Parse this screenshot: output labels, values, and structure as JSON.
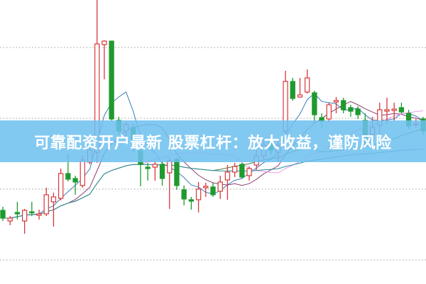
{
  "banner": {
    "text": "可靠配资开户最新 股票杠杆：放大收益，谨防风险"
  },
  "chart_data": {
    "type": "candlestick",
    "title": "",
    "xlabel": "",
    "ylabel": "",
    "ylim": [
      -0.1,
      40
    ],
    "grid": {
      "horizontal": true,
      "style": "dotted",
      "values": [
        33.3,
        23.3,
        13.3,
        3.3
      ]
    },
    "colors": {
      "up": "#d9373b",
      "down": "#1e9a2e",
      "grid": "#b0b0b0",
      "banner": "#6ec0f0"
    },
    "ma_lines": [
      {
        "period": 5,
        "color": "#3b7fb8"
      },
      {
        "period": 10,
        "color": "#8c3f72"
      },
      {
        "period": 20,
        "color": "#ec9be6"
      },
      {
        "period": 30,
        "color": "#4f7d3c"
      },
      {
        "period": 60,
        "color": "#2a8d9c"
      }
    ],
    "candles": [
      [
        10.3,
        10.8,
        8.8,
        9.2
      ],
      [
        8.8,
        9.5,
        8.2,
        9.2
      ],
      [
        10.0,
        11.5,
        9.0,
        9.8
      ],
      [
        8.8,
        10.5,
        7.0,
        10.3
      ],
      [
        10.1,
        11.5,
        9.5,
        10.0
      ],
      [
        9.6,
        10.4,
        9.0,
        9.8
      ],
      [
        9.8,
        13.5,
        9.5,
        12.5
      ],
      [
        11.5,
        12.8,
        8.0,
        12.2
      ],
      [
        12.0,
        16.2,
        11.7,
        15.5
      ],
      [
        15.5,
        18.3,
        14.4,
        14.7
      ],
      [
        14.8,
        15.2,
        12.5,
        14.3
      ],
      [
        13.8,
        18.0,
        13.5,
        17.4
      ],
      [
        17.1,
        19.5,
        16.8,
        18.8
      ],
      [
        18.5,
        40.0,
        17.0,
        33.8
      ],
      [
        33.7,
        34.3,
        28.8,
        34.2
      ],
      [
        34.2,
        34.2,
        23.0,
        23.2
      ],
      [
        23.0,
        23.5,
        21.0,
        21.5
      ],
      [
        21.5,
        22.8,
        20.5,
        22.4
      ],
      [
        22.0,
        22.5,
        18.5,
        20.0
      ],
      [
        18.7,
        19.5,
        13.7,
        16.8
      ],
      [
        16.4,
        17.0,
        14.5,
        16.2
      ],
      [
        16.4,
        17.2,
        14.5,
        16.8
      ],
      [
        16.8,
        17.2,
        13.8,
        14.8
      ],
      [
        15.6,
        17.8,
        10.5,
        17.3
      ],
      [
        17.5,
        17.8,
        13.2,
        13.8
      ],
      [
        13.2,
        13.8,
        11.0,
        11.9
      ],
      [
        11.8,
        12.2,
        10.4,
        11.6
      ],
      [
        11.8,
        14.3,
        10.0,
        13.3
      ],
      [
        13.5,
        14.2,
        12.2,
        13.7
      ],
      [
        13.6,
        14.2,
        12.2,
        12.5
      ],
      [
        13.0,
        15.2,
        11.9,
        14.3
      ],
      [
        14.6,
        16.7,
        11.8,
        15.7
      ],
      [
        15.7,
        17.0,
        15.0,
        16.5
      ],
      [
        16.8,
        17.0,
        14.8,
        15.0
      ],
      [
        15.2,
        16.5,
        14.5,
        16.2
      ],
      [
        16.7,
        18.8,
        16.0,
        18.0
      ],
      [
        18.0,
        20.5,
        17.5,
        19.5
      ],
      [
        20.0,
        20.5,
        18.2,
        18.8
      ],
      [
        18.5,
        20.2,
        17.2,
        19.5
      ],
      [
        21.5,
        30.0,
        20.5,
        28.5
      ],
      [
        28.5,
        29.0,
        25.8,
        26.1
      ],
      [
        26.3,
        29.0,
        26.2,
        26.6
      ],
      [
        27.0,
        30.2,
        26.8,
        29.0
      ],
      [
        26.9,
        27.2,
        22.5,
        23.8
      ],
      [
        23.4,
        24.0,
        22.0,
        22.9
      ],
      [
        23.2,
        25.5,
        22.8,
        25.2
      ],
      [
        25.6,
        26.3,
        24.0,
        25.8
      ],
      [
        25.8,
        26.2,
        24.0,
        24.5
      ],
      [
        24.8,
        25.2,
        23.5,
        24.3
      ],
      [
        24.6,
        25.0,
        23.2,
        23.8
      ],
      [
        23.0,
        24.0,
        19.5,
        20.5
      ],
      [
        21.0,
        23.5,
        20.0,
        22.0
      ],
      [
        22.3,
        25.5,
        21.0,
        24.5
      ],
      [
        24.3,
        26.2,
        22.5,
        24.5
      ],
      [
        24.4,
        25.5,
        23.0,
        24.6
      ],
      [
        24.8,
        25.5,
        24.0,
        24.2
      ],
      [
        24.0,
        24.5,
        21.8,
        22.2
      ],
      [
        22.4,
        23.2,
        22.0,
        22.5
      ],
      [
        23.2,
        23.5,
        21.0,
        21.5
      ]
    ],
    "candle_format": [
      "open",
      "high",
      "low",
      "close"
    ]
  }
}
